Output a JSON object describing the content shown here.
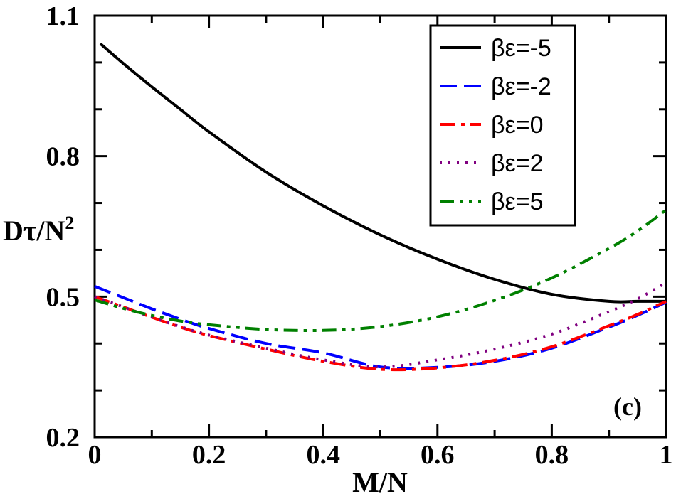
{
  "chart_data": {
    "type": "line",
    "title": "",
    "xlabel": "M/N",
    "ylabel": "Dτ/N",
    "ylabel_sup": "2",
    "xlim": [
      0,
      1
    ],
    "ylim": [
      0.2,
      1.1
    ],
    "x_ticks": [
      0,
      0.2,
      0.4,
      0.6,
      0.8,
      1
    ],
    "x_tick_labels": [
      "0",
      "0.2",
      "0.4",
      "0.6",
      "0.8",
      "1"
    ],
    "y_ticks": [
      0.2,
      0.5,
      0.8,
      1.1
    ],
    "y_tick_labels": [
      "0.2",
      "0.5",
      "0.8",
      "1.1"
    ],
    "panel_label": "(c)",
    "legend_position": "top-right",
    "series": [
      {
        "name": "βε=-5",
        "color": "#000000",
        "dash": "solid",
        "x": [
          0.01,
          0.05,
          0.1,
          0.15,
          0.2,
          0.3,
          0.4,
          0.5,
          0.6,
          0.7,
          0.8,
          0.9,
          0.95,
          1.0
        ],
        "y": [
          1.04,
          0.998,
          0.948,
          0.9,
          0.852,
          0.766,
          0.694,
          0.632,
          0.58,
          0.537,
          0.505,
          0.49,
          0.49,
          0.49
        ]
      },
      {
        "name": "βε=-2",
        "color": "#0000ff",
        "dash": "dashed",
        "x": [
          0.0,
          0.05,
          0.1,
          0.15,
          0.2,
          0.3,
          0.4,
          0.5,
          0.6,
          0.7,
          0.8,
          0.9,
          0.95,
          1.0
        ],
        "y": [
          0.522,
          0.498,
          0.474,
          0.452,
          0.432,
          0.4,
          0.38,
          0.35,
          0.349,
          0.362,
          0.39,
          0.435,
          0.46,
          0.488
        ]
      },
      {
        "name": "βε=0",
        "color": "#ff0000",
        "dash": "dashdot",
        "x": [
          0.0,
          0.05,
          0.1,
          0.15,
          0.2,
          0.3,
          0.4,
          0.5,
          0.6,
          0.7,
          0.8,
          0.9,
          0.95,
          1.0
        ],
        "y": [
          0.5,
          0.478,
          0.456,
          0.435,
          0.417,
          0.388,
          0.362,
          0.345,
          0.348,
          0.364,
          0.393,
          0.438,
          0.462,
          0.49
        ]
      },
      {
        "name": "βε=2",
        "color": "#800080",
        "dash": "dotted",
        "x": [
          0.0,
          0.05,
          0.1,
          0.15,
          0.2,
          0.3,
          0.4,
          0.5,
          0.6,
          0.7,
          0.8,
          0.9,
          0.95,
          1.0
        ],
        "y": [
          0.5,
          0.478,
          0.456,
          0.436,
          0.418,
          0.39,
          0.365,
          0.35,
          0.365,
          0.388,
          0.42,
          0.468,
          0.495,
          0.53
        ]
      },
      {
        "name": "βε=5",
        "color": "#008000",
        "dash": "dashdotdot",
        "x": [
          0.0,
          0.05,
          0.1,
          0.15,
          0.2,
          0.3,
          0.4,
          0.5,
          0.6,
          0.7,
          0.8,
          0.9,
          0.95,
          1.0
        ],
        "y": [
          0.493,
          0.475,
          0.46,
          0.448,
          0.44,
          0.43,
          0.428,
          0.436,
          0.457,
          0.492,
          0.54,
          0.603,
          0.64,
          0.685
        ]
      }
    ]
  }
}
